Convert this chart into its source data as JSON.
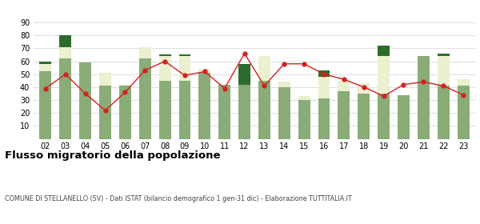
{
  "years": [
    "02",
    "03",
    "04",
    "05",
    "06",
    "07",
    "08",
    "09",
    "10",
    "11",
    "12",
    "13",
    "14",
    "15",
    "16",
    "17",
    "18",
    "19",
    "20",
    "21",
    "22",
    "23"
  ],
  "iscritti_comuni": [
    52,
    62,
    59,
    41,
    41,
    62,
    45,
    45,
    51,
    42,
    42,
    45,
    40,
    30,
    31,
    37,
    35,
    35,
    34,
    64,
    41,
    41
  ],
  "iscritti_estero": [
    6,
    9,
    0,
    10,
    1,
    9,
    19,
    19,
    3,
    0,
    0,
    19,
    4,
    3,
    17,
    8,
    8,
    29,
    0,
    0,
    23,
    5
  ],
  "iscritti_altri": [
    2,
    9,
    0,
    0,
    0,
    0,
    1,
    1,
    0,
    0,
    16,
    0,
    0,
    0,
    5,
    0,
    0,
    8,
    0,
    0,
    2,
    0
  ],
  "cancellati": [
    39,
    50,
    35,
    22,
    36,
    53,
    60,
    49,
    52,
    39,
    66,
    41,
    58,
    58,
    50,
    46,
    40,
    33,
    42,
    44,
    41,
    34
  ],
  "color_comuni": "#8aac78",
  "color_estero": "#eaf0d0",
  "color_altri": "#2d6b2d",
  "color_cancellati": "#d42020",
  "ylim": [
    0,
    90
  ],
  "yticks": [
    0,
    10,
    20,
    30,
    40,
    50,
    60,
    70,
    80,
    90
  ],
  "title": "Flusso migratorio della popolazione",
  "subtitle": "COMUNE DI STELLANELLO (SV) - Dati ISTAT (bilancio demografico 1 gen-31 dic) - Elaborazione TUTTITALIA.IT",
  "background_color": "#ffffff",
  "grid_color": "#d8d8d8"
}
